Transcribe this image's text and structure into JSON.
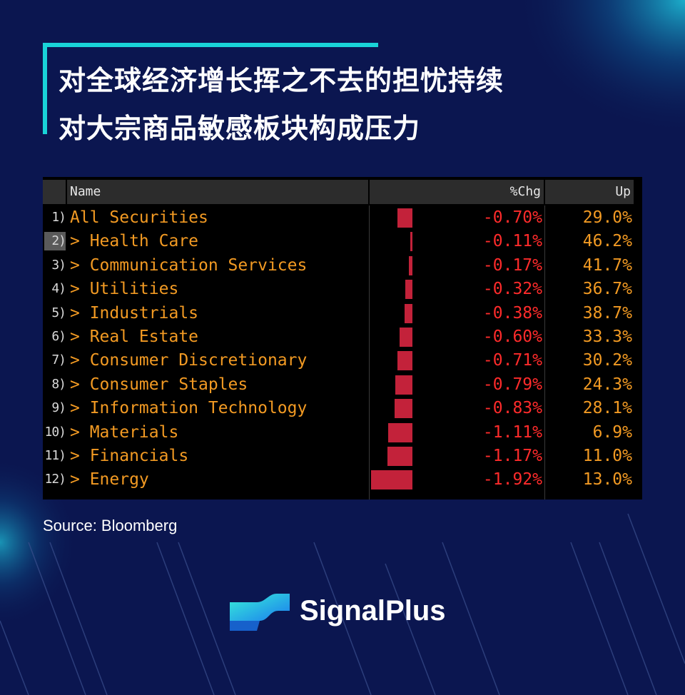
{
  "headline": {
    "line1": "对全球经济增长挥之不去的担忧持续",
    "line2": "对大宗商品敏感板块构成压力"
  },
  "table": {
    "headers": {
      "name": "Name",
      "chg": "%Chg",
      "up": "Up"
    },
    "rows": [
      {
        "idx": "1)",
        "name": "All Securities",
        "chg": "-0.70%",
        "up": "29.0%"
      },
      {
        "idx": "2)",
        "name": "> Health Care",
        "chg": "-0.11%",
        "up": "46.2%"
      },
      {
        "idx": "3)",
        "name": "> Communication Services",
        "chg": "-0.17%",
        "up": "41.7%"
      },
      {
        "idx": "4)",
        "name": "> Utilities",
        "chg": "-0.32%",
        "up": "36.7%"
      },
      {
        "idx": "5)",
        "name": "> Industrials",
        "chg": "-0.38%",
        "up": "38.7%"
      },
      {
        "idx": "6)",
        "name": "> Real Estate",
        "chg": "-0.60%",
        "up": "33.3%"
      },
      {
        "idx": "7)",
        "name": "> Consumer Discretionary",
        "chg": "-0.71%",
        "up": "30.2%"
      },
      {
        "idx": "8)",
        "name": "> Consumer Staples",
        "chg": "-0.79%",
        "up": "24.3%"
      },
      {
        "idx": "9)",
        "name": "> Information Technology",
        "chg": "-0.83%",
        "up": "28.1%"
      },
      {
        "idx": "10)",
        "name": "> Materials",
        "chg": "-1.11%",
        "up": "6.9%"
      },
      {
        "idx": "11)",
        "name": "> Financials",
        "chg": "-1.17%",
        "up": "11.0%"
      },
      {
        "idx": "12)",
        "name": "> Energy",
        "chg": "-1.92%",
        "up": "13.0%"
      }
    ]
  },
  "chart_data": {
    "type": "bar",
    "title": "",
    "categories": [
      "All Securities",
      "Health Care",
      "Communication Services",
      "Utilities",
      "Industrials",
      "Real Estate",
      "Consumer Discretionary",
      "Consumer Staples",
      "Information Technology",
      "Materials",
      "Financials",
      "Energy"
    ],
    "series": [
      {
        "name": "%Chg",
        "values": [
          -0.7,
          -0.11,
          -0.17,
          -0.32,
          -0.38,
          -0.6,
          -0.71,
          -0.79,
          -0.83,
          -1.11,
          -1.17,
          -1.92
        ]
      },
      {
        "name": "Up",
        "values": [
          29.0,
          46.2,
          41.7,
          36.7,
          38.7,
          33.3,
          30.2,
          24.3,
          28.1,
          6.9,
          11.0,
          13.0
        ]
      }
    ],
    "selected_row": 2
  },
  "source": "Source: Bloomberg",
  "brand": {
    "name": "SignalPlus"
  },
  "colors": {
    "background": "#0b1650",
    "accent": "#19d3d8",
    "name_text": "#f29a23",
    "negative": "#ff2b2b",
    "bar": "#c3223a"
  }
}
